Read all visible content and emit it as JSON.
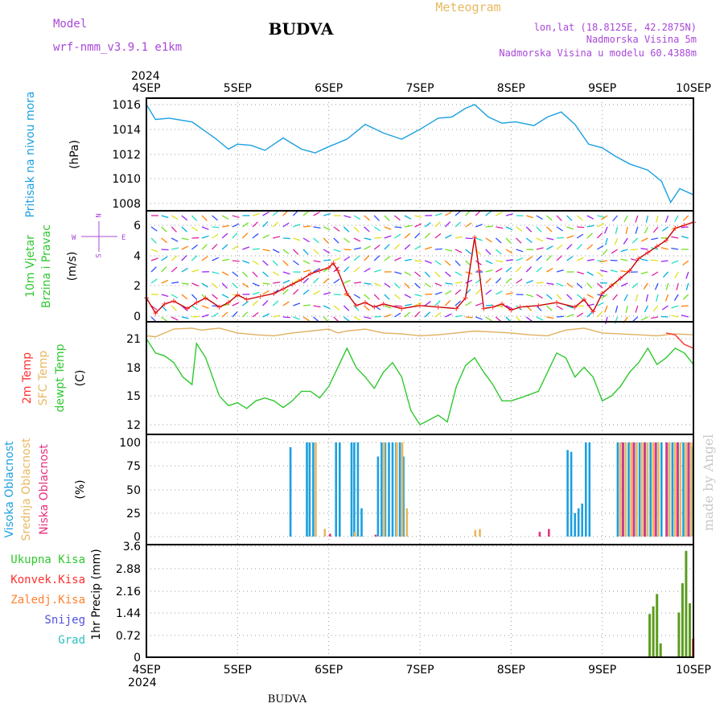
{
  "header": {
    "model_label": "Model",
    "model_name": "wrf-nmm_v3.9.1 e1km",
    "title": "BUDVA",
    "meteogram": "Meteogram",
    "lonlat": "lon,lat (18.8125E, 42.2875N)",
    "altitude": "Nadmorska Visina 5m",
    "altitude_model": "Nadmorska Visina u modelu 60.4388m",
    "footer": "BUDVA",
    "watermark": "made by Angel",
    "colors": {
      "model": "#a848d8",
      "meteogram": "#e8b860",
      "info": "#a848d8"
    }
  },
  "time_axis": {
    "year": "2024",
    "labels": [
      "4SEP",
      "5SEP",
      "6SEP",
      "7SEP",
      "8SEP",
      "9SEP",
      "10SEP"
    ]
  },
  "chart_data": [
    {
      "type": "line",
      "ylabel_lines": [
        "Pritisak na nivou mora",
        "(hPa)"
      ],
      "ylim": [
        1008,
        1016
      ],
      "yticks": [
        "1016",
        "1014",
        "1012",
        "1010",
        "1008"
      ],
      "grid": true,
      "series": [
        {
          "color": "#1ca0e0",
          "x": [
            0,
            0.1,
            0.25,
            0.5,
            0.75,
            0.9,
            1.0,
            1.15,
            1.3,
            1.5,
            1.7,
            1.85,
            2.0,
            2.2,
            2.4,
            2.6,
            2.8,
            3.0,
            3.2,
            3.35,
            3.5,
            3.6,
            3.75,
            3.9,
            4.05,
            4.25,
            4.4,
            4.55,
            4.7,
            4.85,
            5.0,
            5.15,
            5.3,
            5.5,
            5.65,
            5.75,
            5.85,
            6.0
          ],
          "values": [
            1016.0,
            1014.8,
            1014.9,
            1014.6,
            1013.3,
            1012.4,
            1012.8,
            1012.7,
            1012.3,
            1013.3,
            1012.4,
            1012.1,
            1012.6,
            1013.2,
            1014.4,
            1013.7,
            1013.2,
            1014.0,
            1014.9,
            1015.0,
            1015.7,
            1016.0,
            1015.0,
            1014.5,
            1014.6,
            1014.3,
            1015.0,
            1015.4,
            1014.4,
            1012.8,
            1012.5,
            1011.8,
            1011.2,
            1010.7,
            1009.8,
            1008.1,
            1009.2,
            1008.7
          ]
        }
      ]
    },
    {
      "type": "line",
      "ylabel_lines": [
        "10m Vjetar",
        "Brzina i Pravac",
        "(m/s)"
      ],
      "compass": {
        "n": "N",
        "s": "S",
        "e": "E",
        "w": "W"
      },
      "ylim": [
        -0.3,
        6.8
      ],
      "yticks": [
        "6",
        "4",
        "2",
        "0"
      ],
      "grid": true,
      "series": [
        {
          "color": "#c80000",
          "marker": "+",
          "markercolor": "#ff3030",
          "x": [
            0,
            0.1,
            0.2,
            0.3,
            0.45,
            0.55,
            0.65,
            0.8,
            0.9,
            1.0,
            1.1,
            1.25,
            1.4,
            1.5,
            1.6,
            1.7,
            1.8,
            1.9,
            2.0,
            2.05,
            2.1,
            2.2,
            2.3,
            2.4,
            2.5,
            2.6,
            2.8,
            3.0,
            3.2,
            3.4,
            3.5,
            3.6,
            3.65,
            3.7,
            3.8,
            3.9,
            4.0,
            4.1,
            4.3,
            4.5,
            4.7,
            4.8,
            4.9,
            5.0,
            5.1,
            5.2,
            5.3,
            5.4,
            5.5,
            5.6,
            5.7,
            5.8,
            5.9,
            6.0
          ],
          "values": [
            1.2,
            0.2,
            0.8,
            1.0,
            0.5,
            0.9,
            1.2,
            0.6,
            0.9,
            1.4,
            1.1,
            1.3,
            1.5,
            1.8,
            2.1,
            2.4,
            2.8,
            3.0,
            3.2,
            3.5,
            3.0,
            1.5,
            0.7,
            0.9,
            0.6,
            0.8,
            0.5,
            0.7,
            0.6,
            0.5,
            1.2,
            5.2,
            3.0,
            0.5,
            0.6,
            0.8,
            0.4,
            0.6,
            0.7,
            0.9,
            0.6,
            1.1,
            0.3,
            1.5,
            2.0,
            2.5,
            3.0,
            3.8,
            4.2,
            4.6,
            5.0,
            5.8,
            6.0,
            6.2
          ]
        }
      ]
    },
    {
      "type": "line",
      "ylabel_lines": [
        "2m Temp",
        "SFC Temp",
        "dewpt Temp",
        "(C)"
      ],
      "ylabel_colors": [
        "#ff3030",
        "#e8b860",
        "#30c830",
        "#000000"
      ],
      "ylim": [
        11,
        22.5
      ],
      "yticks": [
        "21",
        "18",
        "15",
        "12"
      ],
      "grid": true,
      "series": [
        {
          "color": "#e0b060",
          "x": [
            0,
            0.1,
            0.2,
            0.3,
            0.5,
            0.6,
            0.8,
            1.0,
            1.2,
            1.4,
            1.6,
            1.8,
            2.0,
            2.1,
            2.2,
            2.4,
            2.6,
            2.8,
            3.0,
            3.2,
            3.4,
            3.6,
            3.8,
            4.0,
            4.2,
            4.4,
            4.6,
            4.8,
            5.0,
            5.2,
            5.4,
            5.6,
            5.8,
            6.0
          ],
          "values": [
            21.3,
            21.2,
            21.6,
            22.0,
            22.1,
            21.9,
            22.1,
            21.6,
            21.4,
            21.3,
            21.6,
            21.8,
            22.0,
            21.6,
            21.8,
            22.0,
            21.6,
            21.5,
            21.3,
            21.4,
            21.6,
            21.8,
            21.7,
            21.6,
            21.4,
            21.3,
            21.9,
            22.1,
            21.6,
            21.5,
            21.4,
            21.3,
            21.5,
            21.4
          ]
        },
        {
          "color": "#ff3030",
          "x": [
            5.7,
            5.8,
            5.9,
            6.0
          ],
          "values": [
            21.6,
            21.4,
            20.4,
            20.0
          ]
        },
        {
          "color": "#30c830",
          "x": [
            0,
            0.1,
            0.2,
            0.3,
            0.4,
            0.5,
            0.55,
            0.65,
            0.8,
            0.9,
            1.0,
            1.1,
            1.2,
            1.3,
            1.4,
            1.5,
            1.6,
            1.7,
            1.8,
            1.9,
            2.0,
            2.1,
            2.2,
            2.3,
            2.4,
            2.5,
            2.6,
            2.7,
            2.8,
            2.9,
            3.0,
            3.1,
            3.2,
            3.3,
            3.4,
            3.5,
            3.6,
            3.7,
            3.8,
            3.9,
            4.0,
            4.1,
            4.3,
            4.5,
            4.6,
            4.7,
            4.8,
            4.9,
            5.0,
            5.1,
            5.2,
            5.3,
            5.4,
            5.5,
            5.6,
            5.7,
            5.8,
            5.9,
            6.0
          ],
          "values": [
            21.0,
            19.5,
            19.2,
            18.5,
            17.0,
            16.2,
            20.5,
            19.0,
            15.0,
            14.0,
            14.3,
            13.7,
            14.5,
            14.8,
            14.5,
            13.8,
            14.5,
            15.5,
            15.5,
            14.8,
            16.0,
            18.0,
            20.0,
            18.0,
            17.0,
            15.8,
            17.5,
            18.5,
            17.0,
            13.5,
            12.0,
            12.5,
            13.0,
            12.3,
            16.0,
            18.2,
            19.0,
            17.5,
            16.2,
            14.5,
            14.5,
            14.8,
            15.5,
            19.5,
            19.0,
            17.0,
            18.0,
            17.0,
            14.5,
            15.0,
            16.0,
            17.5,
            18.5,
            20.0,
            18.3,
            19.0,
            20.0,
            19.5,
            18.3
          ]
        }
      ]
    },
    {
      "type": "bar",
      "ylabel_lines": [
        "Visoka Oblacnost",
        "Srednja Oblacnost",
        "Niska Oblacnost",
        "(%)"
      ],
      "ylabel_colors": [
        "#1ca0e0",
        "#e8b860",
        "#e83080",
        "#000000"
      ],
      "ylim": [
        0,
        100
      ],
      "yticks": [
        "100",
        "75",
        "50",
        "25",
        "0"
      ],
      "grid": true,
      "series": [
        {
          "color": "#1ca0e0",
          "x": [
            1.58,
            1.76,
            1.79,
            1.83,
            2.08,
            2.12,
            2.25,
            2.28,
            2.32,
            2.36,
            2.54,
            2.58,
            2.62,
            2.66,
            2.7,
            2.74,
            2.78,
            2.82,
            4.62,
            4.66,
            4.7,
            4.74,
            4.78,
            4.82,
            4.86,
            5.17,
            5.23,
            5.29,
            5.35,
            5.41,
            5.47,
            5.53,
            5.59,
            5.65,
            5.71,
            5.77,
            5.83,
            5.89,
            5.95,
            5.99
          ],
          "values": [
            95,
            100,
            100,
            100,
            100,
            100,
            100,
            100,
            100,
            30,
            85,
            100,
            100,
            100,
            100,
            100,
            100,
            85,
            92,
            90,
            25,
            30,
            35,
            100,
            100,
            100,
            100,
            100,
            100,
            100,
            100,
            100,
            100,
            100,
            100,
            100,
            100,
            100,
            100,
            95
          ]
        },
        {
          "color": "#e8b860",
          "x": [
            1.85,
            1.95,
            2.28,
            2.6,
            2.74,
            2.8,
            2.85,
            3.6,
            3.65,
            5.19,
            5.25,
            5.31,
            5.37,
            5.43,
            5.49,
            5.55,
            5.61,
            5.73,
            5.79,
            5.85,
            5.91,
            5.97
          ],
          "values": [
            100,
            8,
            5,
            100,
            100,
            100,
            30,
            7,
            8,
            100,
            100,
            100,
            100,
            100,
            100,
            100,
            100,
            100,
            100,
            100,
            100,
            100
          ]
        },
        {
          "color": "#e83080",
          "x": [
            2.0,
            2.5,
            4.3,
            4.4,
            5.21,
            5.33,
            5.45,
            5.57,
            5.69,
            5.81,
            5.93
          ],
          "values": [
            3,
            2,
            5,
            8,
            100,
            100,
            100,
            100,
            100,
            100,
            100
          ]
        }
      ]
    },
    {
      "type": "bar",
      "ylabel_lines": [
        "1hr Precip (mm)"
      ],
      "legend": [
        {
          "label": "Ukupna Kisa",
          "color": "#30c830"
        },
        {
          "label": "Konvek.Kisa",
          "color": "#ff3030"
        },
        {
          "label": "Zaledj.Kisa",
          "color": "#ff8030"
        },
        {
          "label": "Snijeg",
          "color": "#5050e0"
        },
        {
          "label": "Grad",
          "color": "#30c0c0"
        }
      ],
      "ylim": [
        0,
        3.6
      ],
      "yticks": [
        "3.6",
        "2.88",
        "2.16",
        "1.44",
        "0.72",
        "0"
      ],
      "grid": true,
      "series": [
        {
          "color": "#5c9c20",
          "x": [
            5.52,
            5.56,
            5.6,
            5.64,
            5.84,
            5.88,
            5.92,
            5.96
          ],
          "values": [
            1.4,
            1.65,
            2.05,
            0.45,
            1.45,
            2.4,
            3.45,
            1.75
          ]
        },
        {
          "color": "#ff3030",
          "x": [
            5.99
          ],
          "values": [
            0.6
          ]
        }
      ]
    }
  ]
}
